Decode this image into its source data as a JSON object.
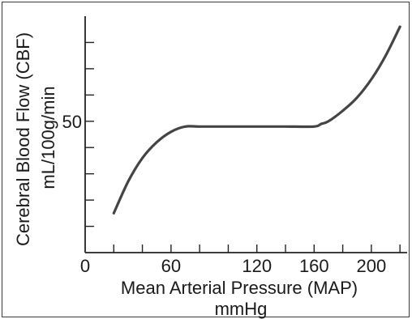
{
  "chart_data": {
    "type": "line",
    "title": "",
    "ylabel_line1": "Cerebral Blood Flow (CBF)",
    "ylabel_line2": "mL/100g/min",
    "xlabel_line1": "Mean Arterial Pressure (MAP)",
    "xlabel_line2": "mmHg",
    "x_tick_labels": [
      "0",
      "60",
      "120",
      "160",
      "200"
    ],
    "x_tick_values": [
      0,
      60,
      120,
      160,
      200
    ],
    "y_tick_labels": [
      "50"
    ],
    "y_tick_values": [
      50
    ],
    "xlim": [
      0,
      225
    ],
    "ylim": [
      0,
      90
    ],
    "grid": false,
    "series": [
      {
        "x": [
          20,
          30,
          40,
          50,
          60,
          70,
          80,
          100,
          120,
          140,
          160,
          165,
          170,
          180,
          190,
          200,
          210,
          220
        ],
        "y": [
          15,
          27,
          36,
          42,
          46,
          48,
          48,
          48,
          48,
          48,
          48,
          49,
          50,
          54,
          59,
          66,
          75,
          86
        ],
        "color": "#444444"
      }
    ]
  }
}
